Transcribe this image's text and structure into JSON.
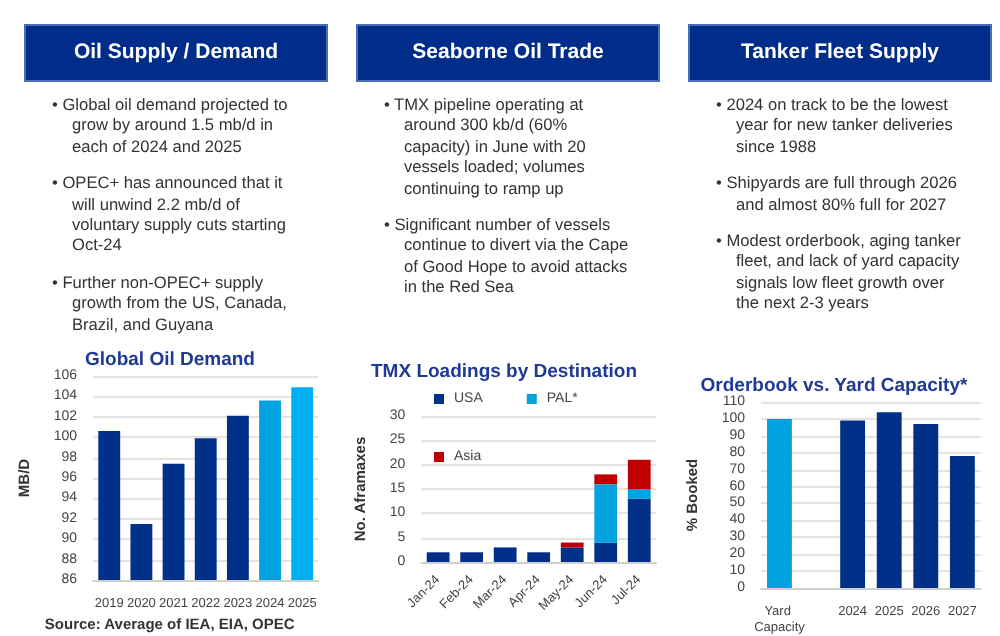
{
  "chart_data": [
    {
      "type": "other",
      "title": "Oil Supply / Demand",
      "annotations": [
        "• Global oil demand projected to grow by around 1.5 mb/d in each of 2024 and 2025",
        "• OPEC+ has announced that it will unwind 2.2 mb/d of voluntary supply cuts starting Oct-24",
        "• Further non-OPEC+ supply growth from the US, Canada, Brazil, and Guyana"
      ]
    },
    {
      "type": "bar",
      "title": "Global Oil Demand",
      "ylabel": "MB/D",
      "categories": [
        "2019",
        "2020",
        "2021",
        "2022",
        "2023",
        "2024",
        "2025"
      ],
      "values": [
        100.6,
        91.5,
        97.4,
        99.9,
        102.1,
        103.6,
        104.9
      ],
      "colors": [
        "#003087",
        "#003087",
        "#003087",
        "#003087",
        "#003087",
        "#00a3e0",
        "#00b0f0"
      ],
      "ylim": [
        86,
        106
      ],
      "yticks": [
        86,
        88,
        90,
        92,
        94,
        96,
        98,
        100,
        102,
        104,
        106
      ],
      "grid": "y",
      "annotations": [
        "Source: Average of IEA, EIA, OPEC"
      ]
    },
    {
      "type": "other",
      "title": "Seaborne Oil Trade",
      "annotations": [
        "• TMX pipeline operating at around 300 kb/d (60% capacity) in June with 20 vessels loaded; volumes continuing to ramp up",
        "• Significant number of vessels continue to divert via the Cape of Good Hope to avoid attacks in the Red Sea"
      ]
    },
    {
      "type": "bar",
      "title": "TMX Loadings by Destination",
      "ylabel": "No. Aframaxes",
      "categories": [
        "Jan-24",
        "Feb-24",
        "Mar-24",
        "Apr-24",
        "May-24",
        "Jun-24",
        "Jul-24"
      ],
      "stacked": true,
      "series": [
        {
          "name": "USA",
          "color": "#003087",
          "values": [
            2,
            2,
            3,
            2,
            3,
            4,
            13
          ]
        },
        {
          "name": "PAL*",
          "color": "#00a3e0",
          "values": [
            0,
            0,
            0,
            0,
            0,
            12,
            2
          ]
        },
        {
          "name": "Asia",
          "color": "#c00000",
          "values": [
            0,
            0,
            0,
            0,
            1,
            2,
            6
          ]
        }
      ],
      "ylim": [
        0,
        30
      ],
      "yticks": [
        0,
        5,
        10,
        15,
        20,
        25,
        30
      ],
      "grid": "y",
      "legend": "top"
    },
    {
      "type": "other",
      "title": "Tanker Fleet Supply",
      "annotations": [
        "• 2024 on track to be the lowest year for new tanker deliveries since 1988",
        "• Shipyards are full through 2026 and almost 80% full for 2027",
        "• Modest orderbook, aging tanker fleet, and lack of yard capacity signals low fleet growth over the next 2-3 years"
      ]
    },
    {
      "type": "bar",
      "title": "Orderbook vs. Yard Capacity*",
      "ylabel": "% Booked",
      "categories": [
        "Yard Capacity",
        null,
        "2024",
        "2025",
        "2026",
        "2027"
      ],
      "values": [
        100,
        null,
        99,
        104,
        97,
        78
      ],
      "colors": [
        "#00a3e0",
        null,
        "#003087",
        "#003087",
        "#003087",
        "#003087"
      ],
      "ylim": [
        0,
        110
      ],
      "yticks": [
        0,
        10,
        20,
        30,
        40,
        50,
        60,
        70,
        80,
        90,
        100,
        110
      ],
      "grid": "y"
    }
  ]
}
